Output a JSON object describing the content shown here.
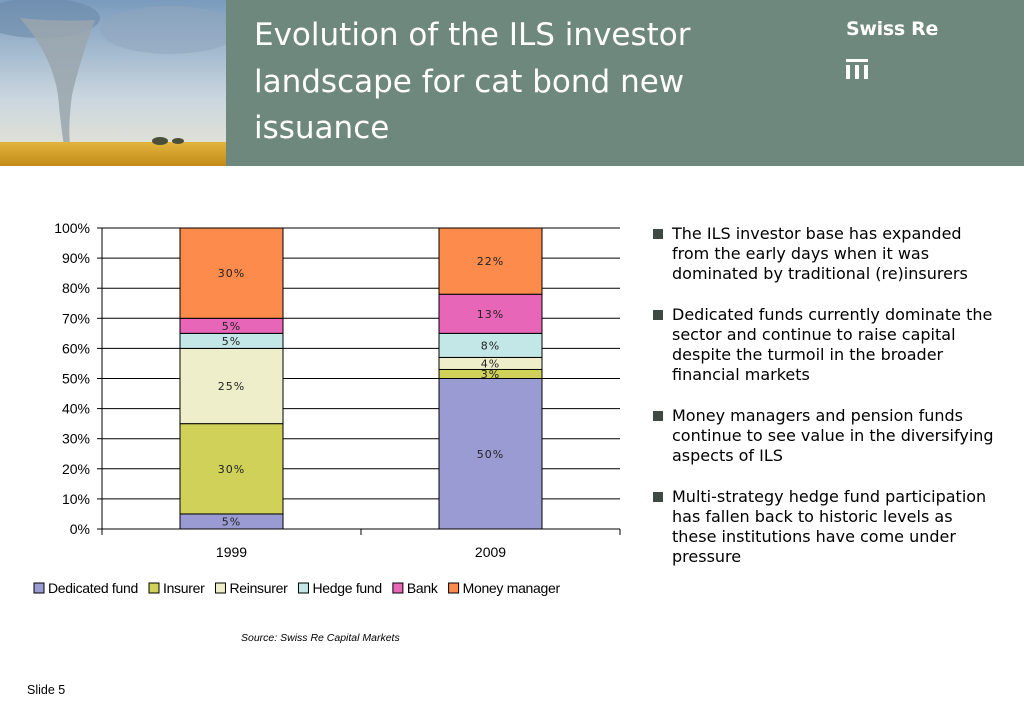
{
  "header": {
    "title": "Evolution of the ILS investor landscape for cat bond new issuance",
    "brand": "Swiss Re"
  },
  "colors": {
    "header_bg": "#6e887d",
    "Dedicated fund": "#9b9bd4",
    "Insurer": "#cfd158",
    "Reinsurer": "#eeeeca",
    "Hedge fund": "#c3e6e6",
    "Bank": "#e866b8",
    "Money manager": "#fd8b4c"
  },
  "chart_data": {
    "type": "bar",
    "stacked": true,
    "categories": [
      "1999",
      "2009"
    ],
    "series": [
      {
        "name": "Dedicated fund",
        "values": [
          5,
          50
        ],
        "labels": [
          "5%",
          "50%"
        ]
      },
      {
        "name": "Insurer",
        "values": [
          30,
          3
        ],
        "labels": [
          "30%",
          "3%"
        ]
      },
      {
        "name": "Reinsurer",
        "values": [
          25,
          4
        ],
        "labels": [
          "25%",
          "4%"
        ]
      },
      {
        "name": "Hedge fund",
        "values": [
          5,
          8
        ],
        "labels": [
          "5%",
          "8%"
        ]
      },
      {
        "name": "Bank",
        "values": [
          5,
          13
        ],
        "labels": [
          "5%",
          "13%"
        ]
      },
      {
        "name": "Money manager",
        "values": [
          30,
          22
        ],
        "labels": [
          "30%",
          "22%"
        ]
      }
    ],
    "y_ticks": [
      "0%",
      "10%",
      "20%",
      "30%",
      "40%",
      "50%",
      "60%",
      "70%",
      "80%",
      "90%",
      "100%"
    ],
    "ylim": [
      0,
      100
    ],
    "grid": true,
    "legend_position": "bottom"
  },
  "bullets": [
    "The ILS investor base has expanded from the early days when it was dominated by traditional (re)insurers",
    "Dedicated funds currently dominate the sector and continue to raise capital despite the turmoil in the broader financial markets",
    "Money managers and pension funds continue to see value in the diversifying aspects of ILS",
    "Multi-strategy hedge fund participation has fallen back to historic levels as these institutions have come under pressure"
  ],
  "source": "Source: Swiss Re Capital Markets",
  "footer": {
    "slide": "Slide 5"
  }
}
